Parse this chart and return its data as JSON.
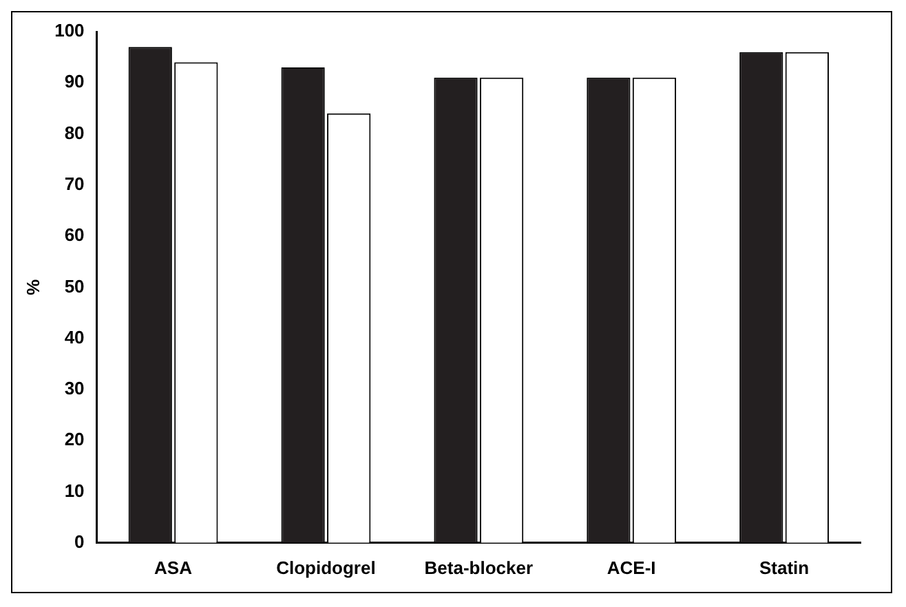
{
  "chart_data": {
    "type": "bar",
    "ylabel": "%",
    "categories": [
      "ASA",
      "Clopidogrel",
      "Beta-blocker",
      "ACE-I",
      "Statin"
    ],
    "series": [
      {
        "color": "#231f20",
        "values": [
          97,
          93,
          91,
          91,
          96
        ]
      },
      {
        "color": "#ffffff",
        "values": [
          94,
          84,
          91,
          91,
          96
        ]
      }
    ],
    "ylim": [
      0,
      100
    ],
    "yticks": [
      0,
      10,
      20,
      30,
      40,
      50,
      60,
      70,
      80,
      90,
      100
    ],
    "grid": false,
    "legend": false
  }
}
